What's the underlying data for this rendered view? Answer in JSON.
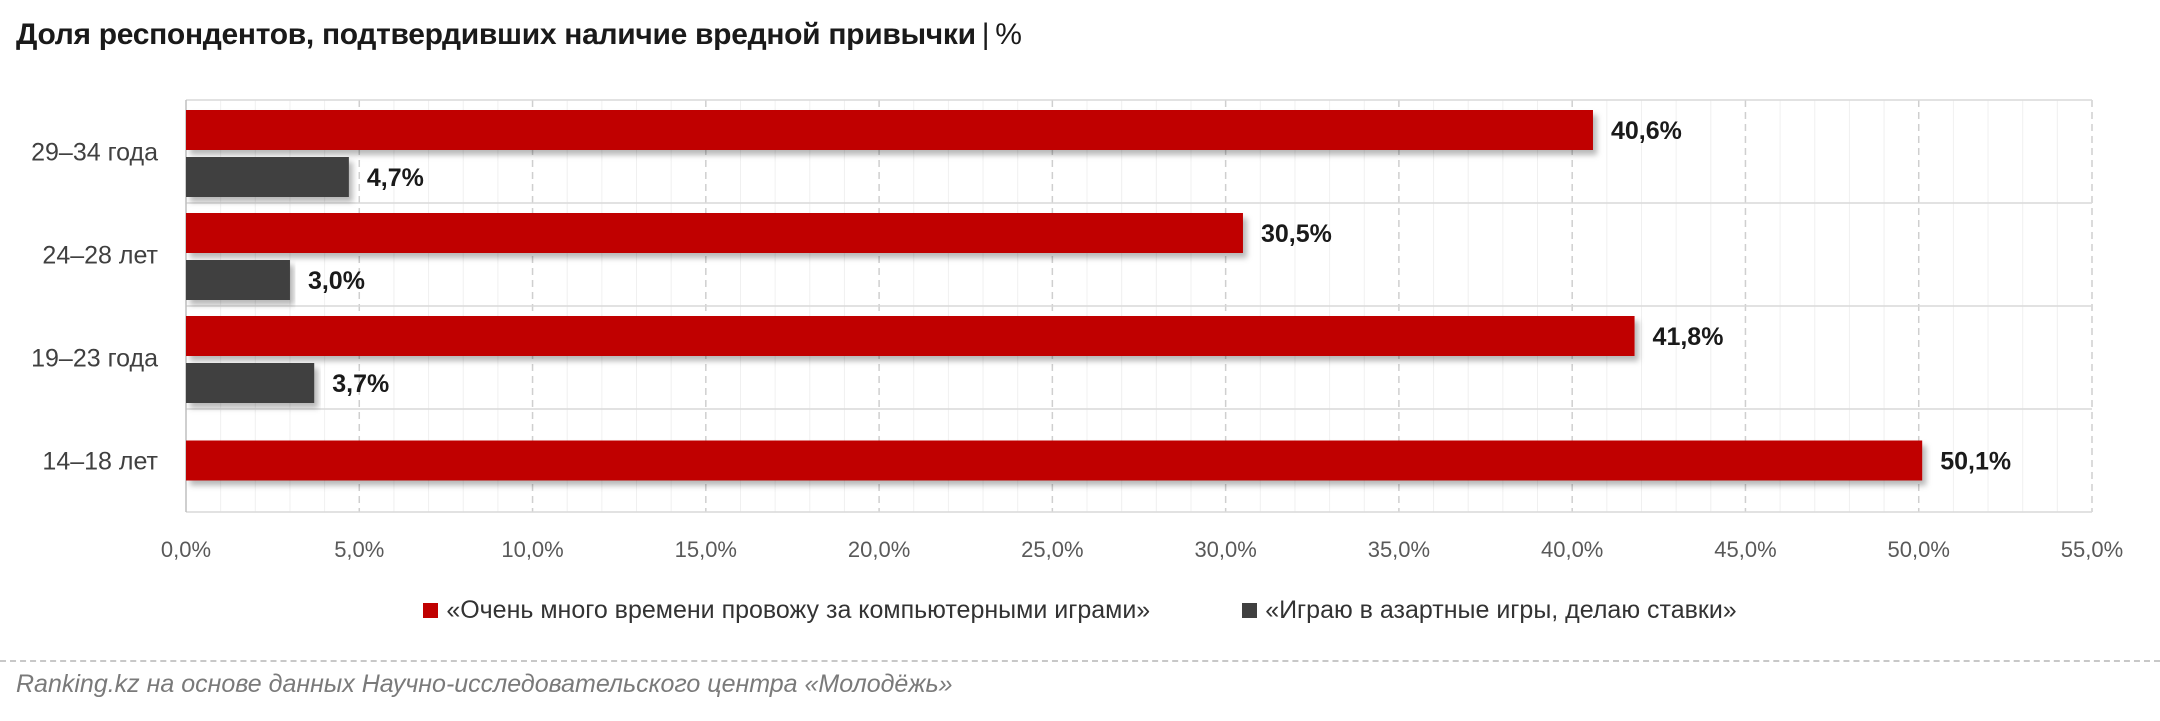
{
  "title": {
    "text": "Доля респондентов, подтвердивших наличие вредной привычки",
    "separator": "|",
    "unit": "%"
  },
  "chart_data": {
    "type": "bar",
    "orientation": "horizontal",
    "categories": [
      "29–34 года",
      "24–28 лет",
      "19–23 года",
      "14–18 лет"
    ],
    "series": [
      {
        "name": "«Очень много времени провожу за компьютерными играми»",
        "color": "#c00000",
        "values": [
          40.6,
          30.5,
          41.8,
          50.1
        ],
        "labels": [
          "40,6%",
          "30,5%",
          "41,8%",
          "50,1%"
        ]
      },
      {
        "name": "«Играю в азартные игры, делаю ставки»",
        "color": "#404040",
        "values": [
          4.7,
          3.0,
          3.7,
          null
        ],
        "labels": [
          "4,7%",
          "3,0%",
          "3,7%",
          ""
        ]
      }
    ],
    "xlim": [
      0,
      55
    ],
    "xticks": [
      "0,0%",
      "5,0%",
      "10,0%",
      "15,0%",
      "20,0%",
      "25,0%",
      "30,0%",
      "35,0%",
      "40,0%",
      "45,0%",
      "50,0%",
      "55,0%"
    ],
    "grid": true,
    "legend_position": "bottom"
  },
  "source": "Ranking.kz на основе данных Научно-исследовательского центра «Молодёжь»"
}
